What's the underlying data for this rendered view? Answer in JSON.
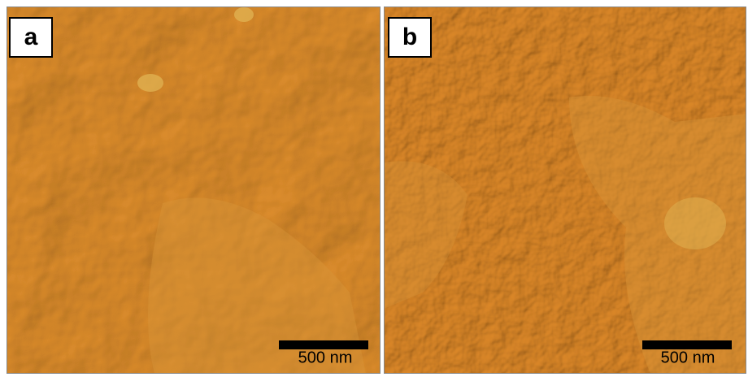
{
  "panels": [
    {
      "label": "a",
      "scale_bar": "500 nm"
    },
    {
      "label": "b",
      "scale_bar": "500 nm"
    }
  ]
}
